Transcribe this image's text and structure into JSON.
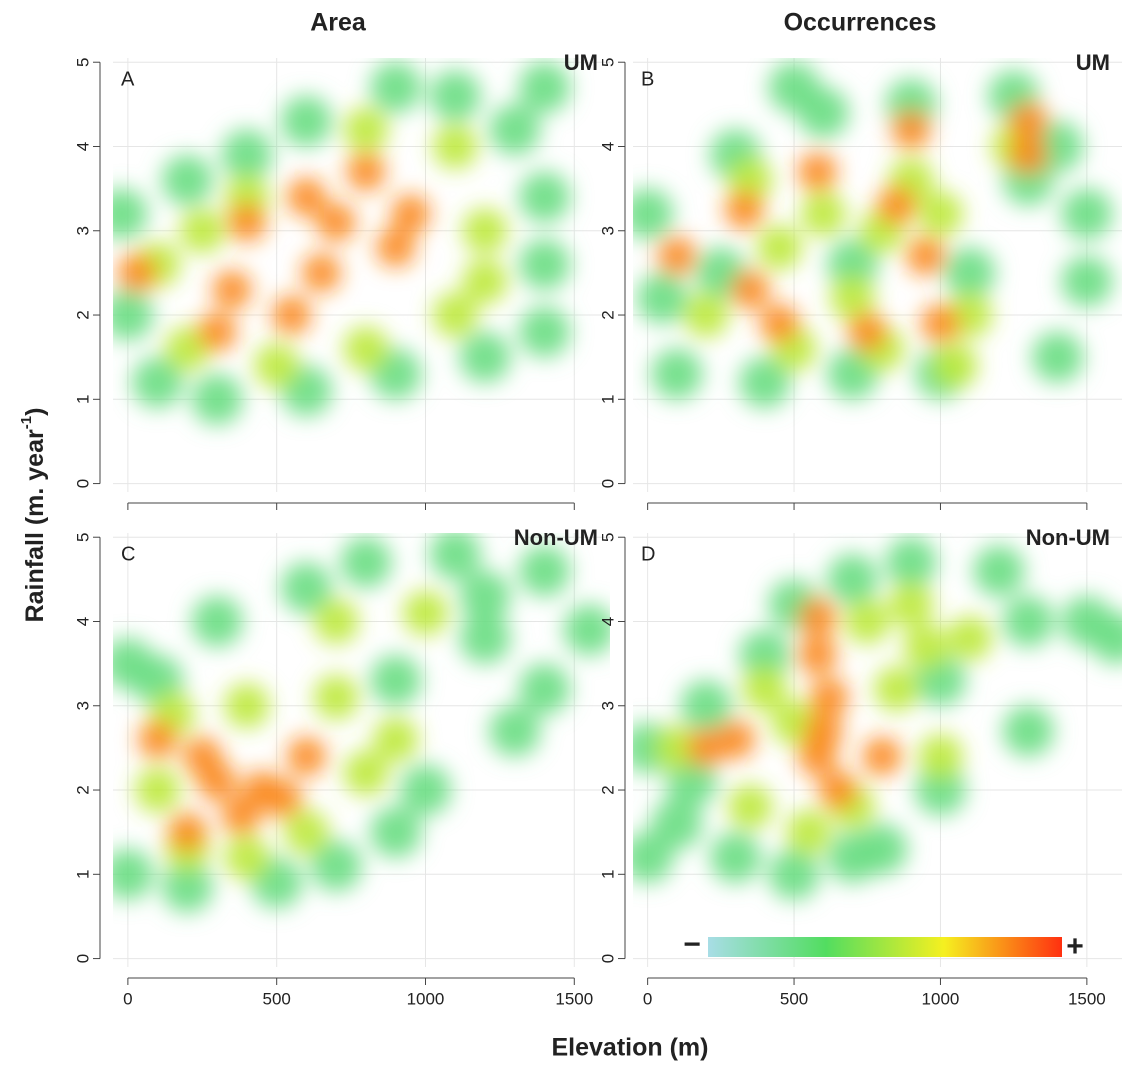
{
  "column_titles": [
    "Area",
    "Occurrences"
  ],
  "x_label": "Elevation (m)",
  "y_label": {
    "text": "Rainfall (m. year",
    "superscript": "-1",
    "suffix": ")"
  },
  "colorbar": {
    "low_label": "−",
    "high_label": "+",
    "colors": [
      "#a8dde6",
      "#52dd60",
      "#f5f020",
      "#ff3010"
    ]
  },
  "chart_data": [
    {
      "type": "density",
      "panel_label": "A",
      "tag": "UM",
      "xlim": [
        -50,
        1620
      ],
      "ylim": [
        -0.1,
        5.05
      ],
      "xticks": [
        0,
        500,
        1000,
        1500
      ],
      "yticks": [
        0,
        1,
        2,
        3,
        4,
        5
      ],
      "grid": true,
      "points": {
        "x": [
          -20,
          0,
          100,
          300,
          600,
          900,
          1200,
          1400,
          1400,
          1400,
          1300,
          1100,
          900,
          600,
          400,
          200,
          1400,
          100,
          200,
          500,
          800,
          1100,
          1200,
          1100,
          800,
          400,
          250,
          1200,
          350,
          400,
          600,
          700,
          800,
          550,
          900,
          650,
          300,
          30,
          950
        ],
        "y": [
          3.2,
          2.0,
          1.2,
          1.0,
          1.1,
          1.3,
          1.5,
          1.8,
          2.6,
          3.4,
          4.2,
          4.6,
          4.7,
          4.3,
          3.9,
          3.6,
          4.7,
          2.6,
          1.6,
          1.4,
          1.6,
          2.0,
          3.0,
          4.0,
          4.2,
          3.4,
          3.0,
          2.4,
          2.3,
          3.1,
          3.4,
          3.1,
          3.7,
          2.0,
          2.8,
          2.5,
          1.8,
          2.5,
          3.2
        ],
        "density": [
          0.25,
          0.25,
          0.25,
          0.25,
          0.25,
          0.25,
          0.25,
          0.25,
          0.25,
          0.25,
          0.25,
          0.25,
          0.25,
          0.25,
          0.25,
          0.25,
          0.25,
          0.55,
          0.55,
          0.55,
          0.55,
          0.55,
          0.55,
          0.55,
          0.55,
          0.55,
          0.55,
          0.55,
          0.85,
          0.85,
          0.85,
          0.85,
          0.85,
          0.85,
          0.85,
          0.85,
          0.85,
          0.85,
          0.85
        ]
      }
    },
    {
      "type": "density",
      "panel_label": "B",
      "tag": "UM",
      "xlim": [
        -50,
        1620
      ],
      "ylim": [
        -0.1,
        5.05
      ],
      "xticks": [
        0,
        500,
        1000,
        1500
      ],
      "yticks": [
        0,
        1,
        2,
        3,
        4,
        5
      ],
      "grid": true,
      "points": {
        "x": [
          0,
          50,
          100,
          400,
          700,
          1000,
          1400,
          1500,
          1500,
          1400,
          1250,
          900,
          600,
          500,
          300,
          1300,
          1100,
          700,
          250,
          200,
          450,
          600,
          800,
          1000,
          1100,
          800,
          500,
          1250,
          900,
          700,
          1050,
          350,
          100,
          330,
          580,
          900,
          1300,
          350,
          450,
          950,
          850,
          1000,
          750,
          1300
        ],
        "y": [
          3.2,
          2.2,
          1.3,
          1.2,
          1.3,
          1.3,
          1.5,
          2.4,
          3.2,
          4.0,
          4.6,
          4.5,
          4.4,
          4.7,
          3.9,
          3.6,
          2.5,
          2.6,
          2.5,
          2.0,
          2.8,
          3.2,
          3.0,
          3.2,
          2.0,
          1.6,
          1.6,
          4.0,
          3.6,
          2.2,
          1.4,
          3.6,
          2.7,
          3.25,
          3.7,
          4.2,
          4.3,
          2.3,
          1.9,
          2.7,
          3.3,
          1.9,
          1.8,
          3.9
        ],
        "density": [
          0.25,
          0.25,
          0.25,
          0.25,
          0.25,
          0.25,
          0.25,
          0.25,
          0.25,
          0.25,
          0.25,
          0.25,
          0.25,
          0.25,
          0.25,
          0.25,
          0.25,
          0.25,
          0.25,
          0.55,
          0.55,
          0.55,
          0.55,
          0.55,
          0.55,
          0.55,
          0.55,
          0.55,
          0.55,
          0.55,
          0.55,
          0.55,
          0.85,
          0.85,
          0.85,
          0.85,
          0.85,
          0.85,
          0.85,
          0.85,
          0.85,
          0.85,
          0.85,
          0.85
        ]
      }
    },
    {
      "type": "density",
      "panel_label": "C",
      "tag": "Non-UM",
      "xlim": [
        -50,
        1620
      ],
      "ylim": [
        -0.1,
        5.05
      ],
      "xticks": [
        0,
        500,
        1000,
        1500
      ],
      "yticks": [
        0,
        1,
        2,
        3,
        4,
        5
      ],
      "grid": true,
      "points": {
        "x": [
          0,
          200,
          500,
          700,
          900,
          1000,
          1300,
          1400,
          1550,
          1400,
          1100,
          800,
          600,
          300,
          0,
          100,
          900,
          1200,
          1200,
          100,
          200,
          400,
          600,
          800,
          700,
          400,
          150,
          900,
          1000,
          700,
          100,
          250,
          450,
          520,
          380,
          600,
          300,
          200
        ],
        "y": [
          1.0,
          0.85,
          0.9,
          1.1,
          1.5,
          2.0,
          2.7,
          3.2,
          3.9,
          4.6,
          4.8,
          4.7,
          4.4,
          4.0,
          3.5,
          3.3,
          3.3,
          3.8,
          4.3,
          2.0,
          1.3,
          1.2,
          1.5,
          2.2,
          3.1,
          3.0,
          2.9,
          2.6,
          4.1,
          4.0,
          2.6,
          2.4,
          2.0,
          1.9,
          1.7,
          2.4,
          2.1,
          1.5
        ],
        "density": [
          0.25,
          0.25,
          0.25,
          0.25,
          0.25,
          0.25,
          0.25,
          0.25,
          0.25,
          0.25,
          0.25,
          0.25,
          0.25,
          0.25,
          0.25,
          0.25,
          0.25,
          0.25,
          0.25,
          0.55,
          0.55,
          0.55,
          0.55,
          0.55,
          0.55,
          0.55,
          0.55,
          0.55,
          0.55,
          0.55,
          0.85,
          0.85,
          0.85,
          0.85,
          0.85,
          0.85,
          0.85,
          0.85
        ]
      }
    },
    {
      "type": "density",
      "panel_label": "D",
      "tag": "Non-UM",
      "xlim": [
        -50,
        1620
      ],
      "ylim": [
        -0.1,
        5.05
      ],
      "xticks": [
        0,
        500,
        1000,
        1500
      ],
      "yticks": [
        0,
        1,
        2,
        3,
        4,
        5
      ],
      "grid": true,
      "points": {
        "x": [
          0,
          100,
          300,
          500,
          700,
          800,
          1000,
          1300,
          0,
          200,
          400,
          500,
          700,
          900,
          1200,
          1500,
          1600,
          1300,
          1000,
          150,
          100,
          350,
          400,
          550,
          700,
          850,
          900,
          950,
          750,
          1100,
          1000,
          500,
          580,
          580,
          600,
          580,
          650,
          300,
          200,
          800,
          620
        ],
        "y": [
          1.2,
          1.6,
          1.2,
          1.0,
          1.2,
          1.3,
          2.0,
          2.7,
          2.5,
          3.0,
          3.6,
          4.2,
          4.5,
          4.7,
          4.6,
          4.0,
          3.8,
          4.0,
          3.3,
          2.1,
          2.5,
          1.8,
          3.2,
          1.5,
          1.8,
          3.2,
          4.2,
          3.7,
          4.0,
          3.8,
          2.4,
          2.8,
          4.05,
          3.6,
          2.7,
          2.4,
          2.0,
          2.6,
          2.5,
          2.4,
          3.1
        ],
        "density": [
          0.25,
          0.25,
          0.25,
          0.25,
          0.25,
          0.25,
          0.25,
          0.25,
          0.25,
          0.25,
          0.25,
          0.25,
          0.25,
          0.25,
          0.25,
          0.25,
          0.25,
          0.25,
          0.25,
          0.25,
          0.55,
          0.55,
          0.55,
          0.55,
          0.55,
          0.55,
          0.55,
          0.55,
          0.55,
          0.55,
          0.55,
          0.55,
          0.85,
          0.85,
          0.85,
          0.85,
          0.85,
          0.85,
          0.85,
          0.85,
          0.85
        ]
      }
    }
  ]
}
